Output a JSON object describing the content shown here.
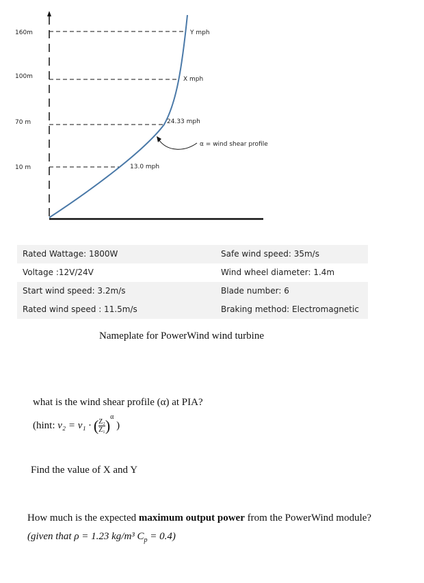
{
  "diagram": {
    "heights": [
      "160m",
      "100m",
      "70 m",
      "10 m"
    ],
    "speeds": [
      "Y mph",
      "X mph",
      "24.33 mph",
      "13.0 mph"
    ],
    "annotation": "α = wind shear profile"
  },
  "nameplate": {
    "rows": [
      [
        "Rated Wattage: 1800W",
        "Safe wind speed: 35m/s"
      ],
      [
        "Voltage :12V/24V",
        "Wind wheel diameter: 1.4m"
      ],
      [
        "Start wind speed: 3.2m/s",
        "Blade number: 6"
      ],
      [
        "Rated wind speed : 11.5m/s",
        "Braking method: Electromagnetic"
      ]
    ],
    "caption": "Nameplate for PowerWind wind turbine"
  },
  "questions": {
    "q1": "what is the wind shear profile (α) at PIA?",
    "hint": {
      "open": "(hint:",
      "lhs": "v₂ = v₁ ·",
      "lparen": "(",
      "numerator": "Z₂",
      "denominator": "Z₁",
      "rparen": ")",
      "exponent": "α",
      "close": ")"
    },
    "q2": "Find the value of X and Y",
    "q3": {
      "before": "How much is the expected",
      "bold": "maximum output power",
      "after": "from the PowerWind module?",
      "given": "(given that ρ = 1.23 kg/m³ C",
      "sub": "p",
      "given_end": " = 0.4)"
    }
  }
}
